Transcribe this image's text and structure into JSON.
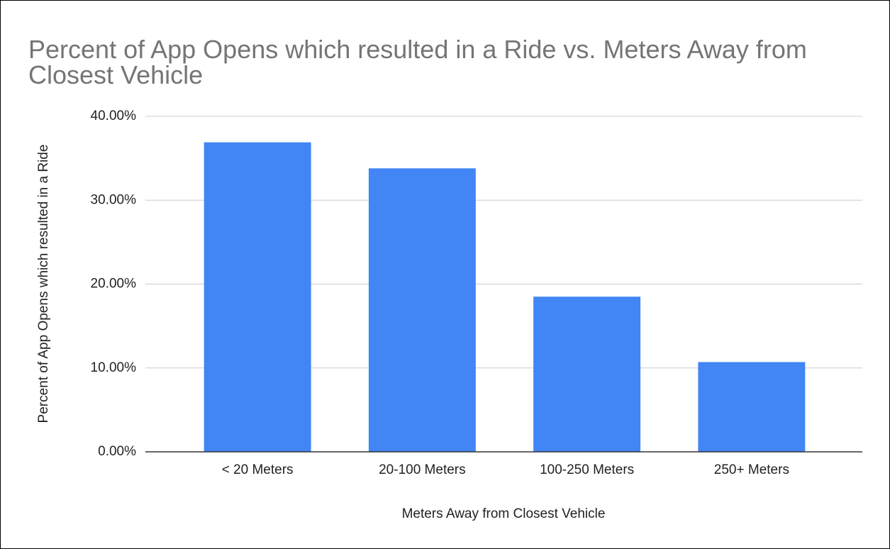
{
  "chart_data": {
    "type": "bar",
    "title": "Percent of App Opens which resulted in a Ride vs. Meters Away from Closest Vehicle",
    "x_label": "Meters Away from Closest Vehicle",
    "y_label": "Percent of App Opens which resulted in a Ride",
    "categories": [
      "< 20 Meters",
      "20-100 Meters",
      "100-250 Meters",
      "250+ Meters"
    ],
    "values": [
      36.9,
      33.8,
      18.5,
      10.7
    ],
    "color": "#4285f4",
    "ylim": [
      0,
      40
    ],
    "yticks": [
      {
        "value": 0,
        "label": "0.00%"
      },
      {
        "value": 10,
        "label": "10.00%"
      },
      {
        "value": 20,
        "label": "20.00%"
      },
      {
        "value": 30,
        "label": "30.00%"
      },
      {
        "value": 40,
        "label": "40.00%"
      }
    ],
    "grid": true
  }
}
